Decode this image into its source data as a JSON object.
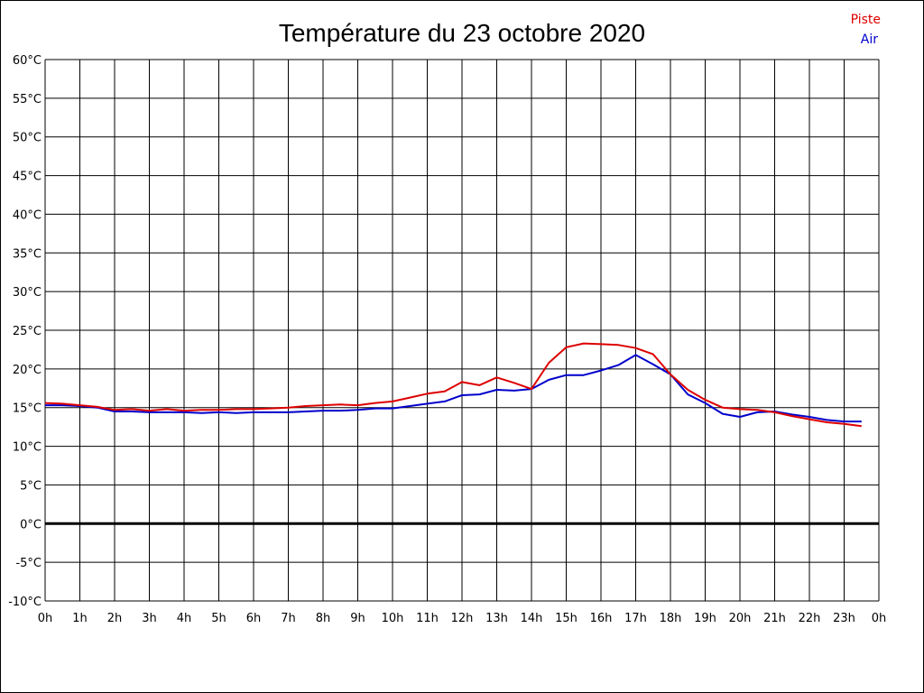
{
  "chart_data": {
    "type": "line",
    "title": "Température du 23 octobre 2020",
    "xlabel": "",
    "ylabel": "",
    "x_unit": "hour",
    "xlim": [
      0,
      24
    ],
    "ylim": [
      -10,
      60
    ],
    "x_tick_labels": [
      "0h",
      "1h",
      "2h",
      "3h",
      "4h",
      "5h",
      "6h",
      "7h",
      "8h",
      "9h",
      "10h",
      "11h",
      "12h",
      "13h",
      "14h",
      "15h",
      "16h",
      "17h",
      "18h",
      "19h",
      "20h",
      "21h",
      "22h",
      "23h",
      "0h"
    ],
    "y_ticks": [
      -10,
      -5,
      0,
      5,
      10,
      15,
      20,
      25,
      30,
      35,
      40,
      45,
      50,
      55,
      60
    ],
    "y_tick_labels": [
      "-10°C",
      "-5°C",
      "0°C",
      "5°C",
      "10°C",
      "15°C",
      "20°C",
      "25°C",
      "30°C",
      "35°C",
      "40°C",
      "45°C",
      "50°C",
      "55°C",
      "60°C"
    ],
    "grid": true,
    "zero_line": true,
    "legend_position": "top-right",
    "x": [
      0,
      0.5,
      1,
      1.5,
      2,
      2.5,
      3,
      3.5,
      4,
      4.5,
      5,
      5.5,
      6,
      6.5,
      7,
      7.5,
      8,
      8.5,
      9,
      9.5,
      10,
      10.5,
      11,
      11.5,
      12,
      12.5,
      13,
      13.5,
      14,
      14.5,
      15,
      15.5,
      16,
      16.5,
      17,
      17.5,
      18,
      18.5,
      19,
      19.5,
      20,
      20.5,
      21,
      21.5,
      22,
      22.5,
      23,
      23.5
    ],
    "series": [
      {
        "name": "Piste",
        "color": "#dd0000",
        "values": [
          15.6,
          15.5,
          15.3,
          15.1,
          14.7,
          14.8,
          14.6,
          14.8,
          14.6,
          14.7,
          14.7,
          14.8,
          14.8,
          14.9,
          15.0,
          15.2,
          15.3,
          15.4,
          15.3,
          15.6,
          15.8,
          16.3,
          16.8,
          17.1,
          18.3,
          17.9,
          18.9,
          18.2,
          17.4,
          20.8,
          22.8,
          23.3,
          23.2,
          23.1,
          22.7,
          21.9,
          19.3,
          17.3,
          16.0,
          15.0,
          14.8,
          14.7,
          14.4,
          13.9,
          13.5,
          13.1,
          12.9,
          12.6
        ]
      },
      {
        "name": "Air",
        "color": "#0000cc",
        "values": [
          15.3,
          15.3,
          15.2,
          15.0,
          14.5,
          14.5,
          14.4,
          14.4,
          14.4,
          14.3,
          14.4,
          14.3,
          14.4,
          14.4,
          14.4,
          14.5,
          14.6,
          14.6,
          14.7,
          14.9,
          14.9,
          15.2,
          15.5,
          15.8,
          16.6,
          16.7,
          17.3,
          17.2,
          17.4,
          18.6,
          19.2,
          19.2,
          19.8,
          20.5,
          21.8,
          20.6,
          19.3,
          16.7,
          15.6,
          14.2,
          13.8,
          14.4,
          14.5,
          14.1,
          13.8,
          13.4,
          13.2,
          13.2
        ]
      }
    ]
  }
}
